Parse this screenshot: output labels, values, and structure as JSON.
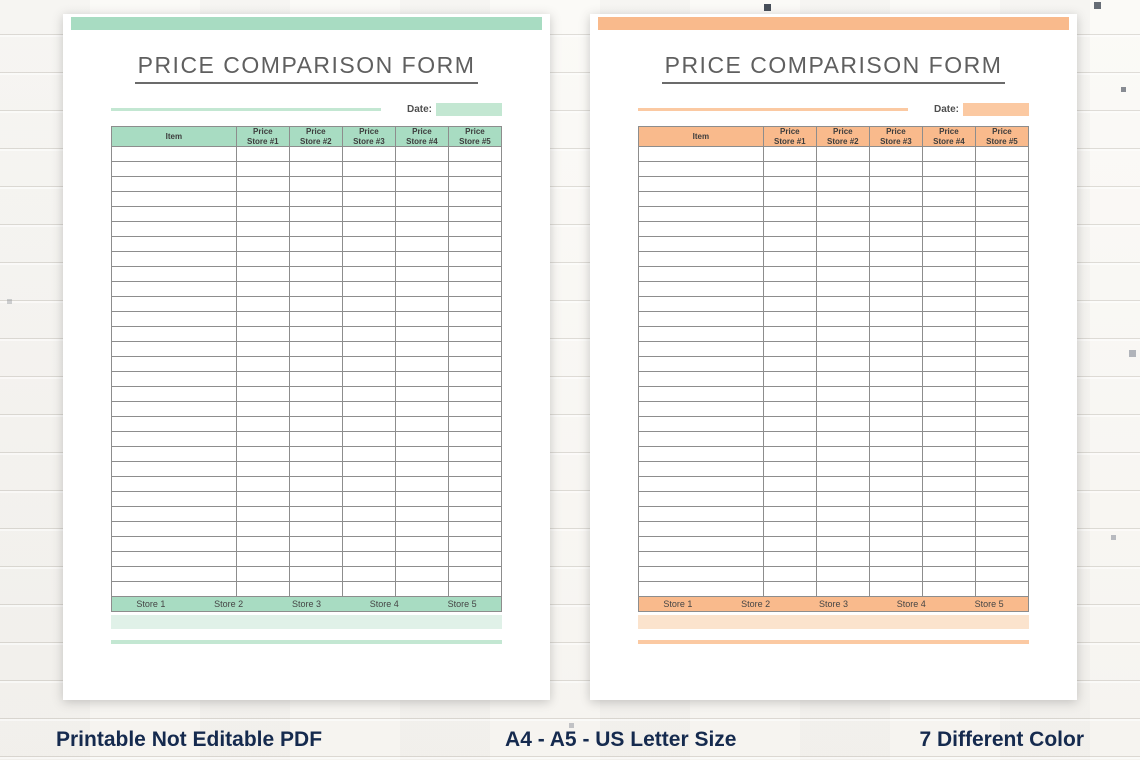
{
  "pages": [
    {
      "name": "mint-green-variant",
      "colors": {
        "accent": "#a8dcc2",
        "accent_soft": "#c3e7d2",
        "accent_light": "#e0f1e8"
      },
      "title": "PRICE COMPARISON FORM",
      "date_label": "Date:",
      "table": {
        "item_header": "Item",
        "price_headers": [
          "Price\nStore #1",
          "Price\nStore #2",
          "Price\nStore #3",
          "Price\nStore #4",
          "Price\nStore #5"
        ],
        "empty_rows": 30,
        "store_footer": [
          "Store 1",
          "Store 2",
          "Store 3",
          "Store 4",
          "Store 5"
        ]
      }
    },
    {
      "name": "peach-orange-variant",
      "colors": {
        "accent": "#f9ba8c",
        "accent_soft": "#fbc9a2",
        "accent_light": "#fbe3cd"
      },
      "title": "PRICE COMPARISON FORM",
      "date_label": "Date:",
      "table": {
        "item_header": "Item",
        "price_headers": [
          "Price\nStore #1",
          "Price\nStore #2",
          "Price\nStore #3",
          "Price\nStore #4",
          "Price\nStore #5"
        ],
        "empty_rows": 30,
        "store_footer": [
          "Store 1",
          "Store 2",
          "Store 3",
          "Store 4",
          "Store 5"
        ]
      }
    }
  ],
  "captions": {
    "left": "Printable Not Editable PDF",
    "center": "A4 - A5 - US Letter Size",
    "right": "7 Different Color"
  }
}
